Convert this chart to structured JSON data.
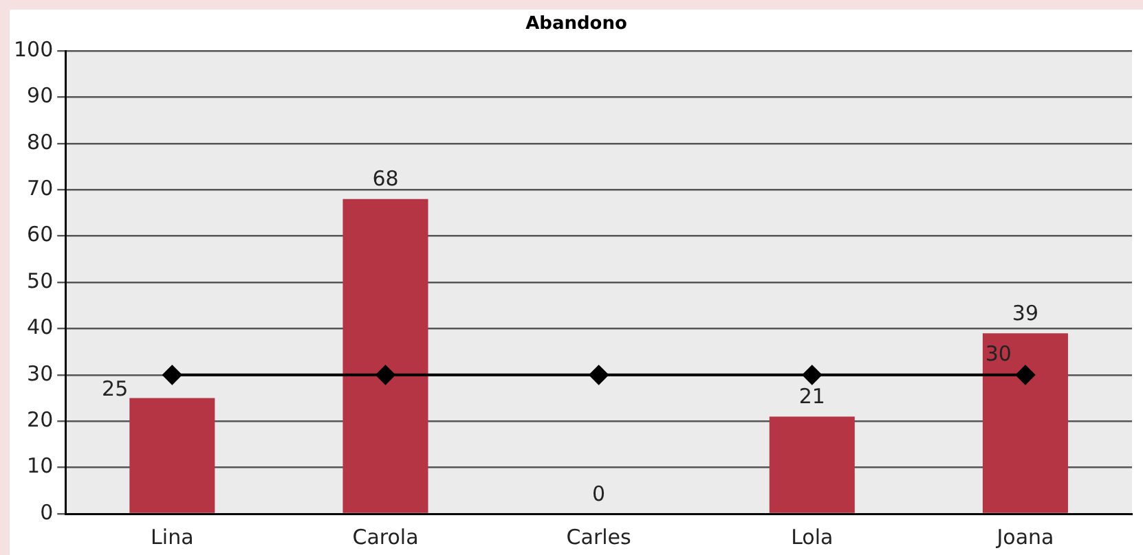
{
  "chart_data": {
    "type": "bar",
    "title": "Abandono",
    "categories": [
      "Lina",
      "Carola",
      "Carles",
      "Lola",
      "Joana"
    ],
    "series": [
      {
        "color": "#b63545",
        "values": [
          25,
          68,
          0,
          21,
          39
        ],
        "value_labels": [
          "25",
          "68",
          "0",
          "21",
          "39"
        ]
      },
      {
        "type": "line",
        "color": "#000000",
        "values": [
          30,
          30,
          30,
          30,
          30
        ],
        "value_labels": [
          null,
          null,
          null,
          null,
          "30"
        ]
      }
    ],
    "marker": "diamond",
    "line_style": "solid",
    "ylim": [
      0,
      100
    ],
    "yticks": [
      0,
      10,
      20,
      30,
      40,
      50,
      60,
      70,
      80,
      90,
      100
    ],
    "grid": "y",
    "legend": false
  }
}
